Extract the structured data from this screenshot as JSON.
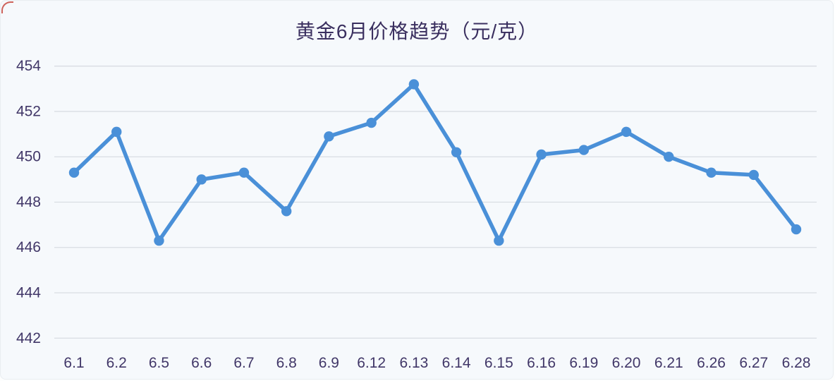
{
  "page": {
    "background": "#f6f9fc"
  },
  "chart_data": {
    "type": "line",
    "title": "黄金6月价格趋势（元/克）",
    "categories": [
      "6.1",
      "6.2",
      "6.5",
      "6.6",
      "6.7",
      "6.8",
      "6.9",
      "6.12",
      "6.13",
      "6.14",
      "6.15",
      "6.16",
      "6.19",
      "6.20",
      "6.21",
      "6.26",
      "6.27",
      "6.28"
    ],
    "values": [
      449.3,
      451.1,
      446.3,
      449.0,
      449.3,
      447.6,
      450.9,
      451.5,
      453.2,
      450.2,
      446.3,
      450.1,
      450.3,
      451.1,
      450.0,
      449.3,
      449.2,
      446.8
    ],
    "xlabel": "",
    "ylabel": "",
    "ylim": [
      442,
      454
    ],
    "y_ticks": [
      454,
      452,
      450,
      448,
      446,
      444,
      442
    ],
    "grid": true,
    "legend_position": "none",
    "marker": "circle",
    "colors": {
      "line": "#4a90d8",
      "marker": "#4a90d8",
      "grid": "#d9dde3",
      "tick_text": "#413768",
      "title_text": "#3a2f5f",
      "corner_accent": "#c84a3f"
    }
  }
}
